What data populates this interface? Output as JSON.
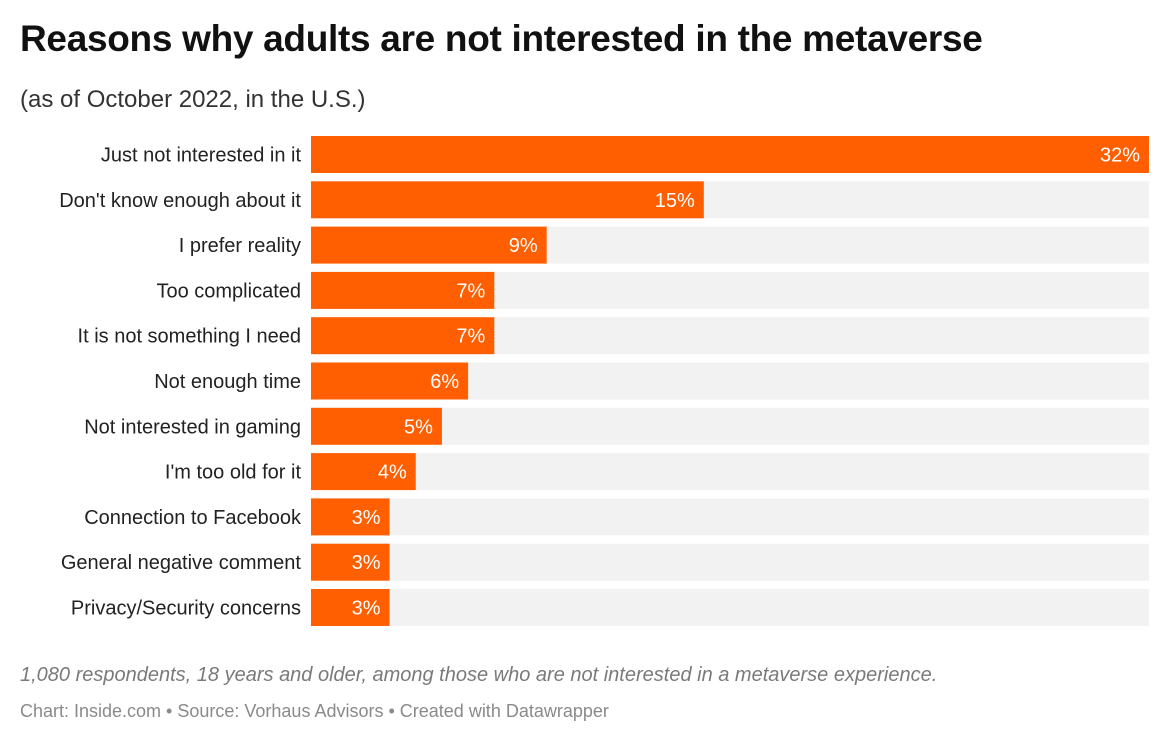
{
  "title": "Reasons why adults are not interested in the metaverse",
  "subtitle": "(as of October 2022, in the U.S.)",
  "note": "1,080 respondents, 18 years and older, among those who are not interested in a metaverse experience.",
  "credits": "Chart: Inside.com • Source: Vorhaus Advisors • Created with Datawrapper",
  "colors": {
    "bar": "#ff5f00",
    "track": "#f2f2f2",
    "bar_label": "#ffffff",
    "category_label": "#222222"
  },
  "chart_data": {
    "type": "bar",
    "orientation": "horizontal",
    "categories": [
      "Just not interested in it",
      "Don't know enough about it",
      "I prefer reality",
      "Too complicated",
      "It is not something I need",
      "Not enough time",
      "Not interested in gaming",
      "I'm too old for it",
      "Connection to Facebook",
      "General negative comment",
      "Privacy/Security concerns"
    ],
    "values": [
      32,
      15,
      9,
      7,
      7,
      6,
      5,
      4,
      3,
      3,
      3
    ],
    "value_labels": [
      "32%",
      "15%",
      "9%",
      "7%",
      "7%",
      "6%",
      "5%",
      "4%",
      "3%",
      "3%",
      "3%"
    ],
    "xlim": [
      0,
      32
    ],
    "grid": false,
    "legend": "none"
  }
}
